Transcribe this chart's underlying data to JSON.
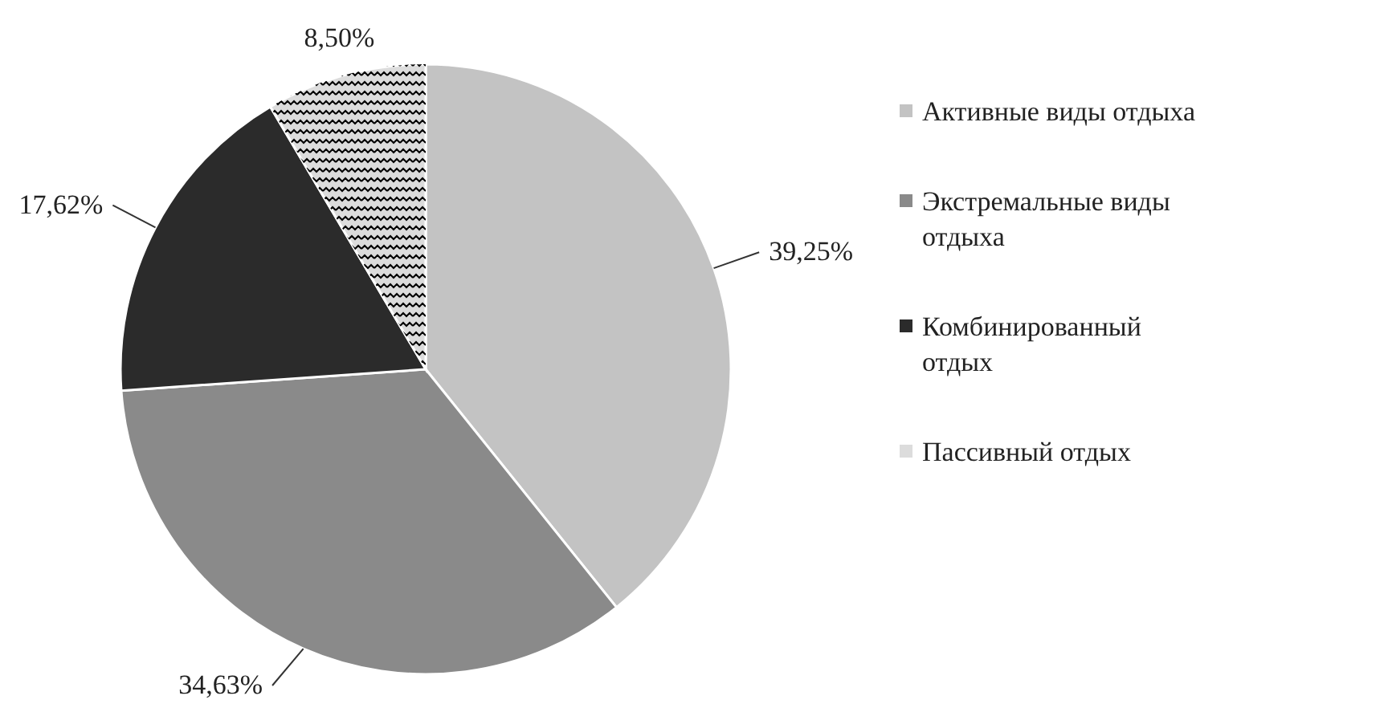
{
  "chart_data": {
    "type": "pie",
    "categories": [
      "Активные виды отдыха",
      "Экстремальные виды отдыха",
      "Комбинированный отдых",
      "Пассивный отдых"
    ],
    "values": [
      39.25,
      34.63,
      17.62,
      8.5
    ],
    "value_labels": [
      "39,25%",
      "34,63%",
      "17,62%",
      "8,50%"
    ],
    "colors": [
      "#c3c3c3",
      "#8a8a8a",
      "#2b2b2b",
      "#dcdcdc"
    ],
    "legend": "right"
  }
}
